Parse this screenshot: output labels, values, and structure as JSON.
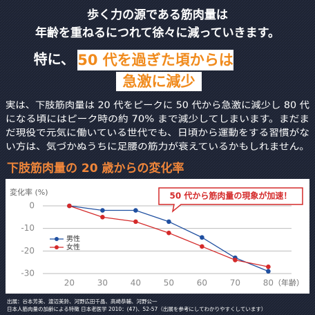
{
  "header": {
    "line1": "歩く力の源である筋肉量は",
    "line2": "年齢を重ねるにつれて徐々に減っていきます。",
    "lead": "特に、",
    "highlight1": "50 代を過ぎた頃からは",
    "highlight2": "急激に減少"
  },
  "body": {
    "lines": [
      "実は、下肢筋肉量は 20 代をピークに 50 代から急激に減少し 80 代",
      "になる頃にはピーク時の約 70% まで減少してしまいます。まだま",
      "だ現役で元気に働いている世代でも、日頃から運動をする習慣がな",
      "い方は、気づかぬうちに足腰の筋力が衰えているかもしれません。"
    ]
  },
  "section_title": "下肢筋肉量の 20 歳からの変化率",
  "chart_data": {
    "type": "line",
    "ylabel": "変化率 (%)",
    "xlabel": "（年齢）",
    "annotation": "50 代から筋肉量の現象が加速！",
    "x": [
      20,
      30,
      40,
      50,
      60,
      70,
      80
    ],
    "series": [
      {
        "name": "男性",
        "color": "#1f4fa0",
        "values": [
          0,
          -2,
          -2,
          -7,
          -14,
          -23,
          -29
        ]
      },
      {
        "name": "女性",
        "color": "#d42a2a",
        "values": [
          0,
          -5,
          -7,
          -12,
          -18,
          -24,
          -27
        ]
      }
    ],
    "xlim": [
      12,
      87
    ],
    "xticks": [
      20,
      30,
      40,
      50,
      60,
      70,
      80
    ],
    "ylim": [
      -30,
      0
    ],
    "yticks": [
      0,
      -10,
      -20,
      -30
    ],
    "grid": true
  },
  "sources": [
    "出展：谷本芳美、渡辺美鈴、河野広田千晶、高崎恭輔、河野公一",
    "日本人筋肉量の加齢による特徴 日本老医学 2010：(47)、52-57（出展を参考にしてわかりやすくしています）"
  ]
}
